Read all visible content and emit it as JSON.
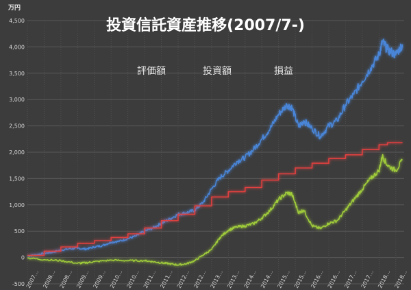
{
  "chart_data": {
    "type": "line",
    "title": "投資信託資産推移(2007/7-)",
    "y_unit_label": "万円",
    "ylim": [
      -500,
      4500
    ],
    "y_ticks": [
      -500,
      0,
      500,
      1000,
      1500,
      2000,
      2500,
      3000,
      3500,
      4000,
      4500
    ],
    "y_tick_labels": [
      "-500",
      "0",
      "500",
      "1,000",
      "1,500",
      "2,000",
      "2,500",
      "3,000",
      "3,500",
      "4,000",
      "4,500"
    ],
    "x_range": [
      2007.5,
      2018.75
    ],
    "x_ticks": [
      2007.5,
      2008.0,
      2008.5,
      2009.0,
      2009.5,
      2010.0,
      2010.5,
      2011.0,
      2011.5,
      2012.0,
      2012.5,
      2013.0,
      2013.5,
      2014.0,
      2014.5,
      2015.0,
      2015.5,
      2016.0,
      2016.5,
      2017.0,
      2017.5,
      2018.0,
      2018.5
    ],
    "x_tick_labels": [
      "2007…",
      "2008…",
      "2008…",
      "2009…",
      "2009…",
      "2010…",
      "2010…",
      "2011…",
      "2011…",
      "2012…",
      "2012…",
      "2013…",
      "2013…",
      "2014…",
      "2014…",
      "2015…",
      "2015…",
      "2016…",
      "2016…",
      "2017…",
      "2017…",
      "2018…",
      "2018…"
    ],
    "grid": true,
    "legend_position": "top-center",
    "series": [
      {
        "name": "評価額",
        "color": "#4a86d9",
        "points": [
          [
            2007.5,
            30
          ],
          [
            2007.75,
            50
          ],
          [
            2008.0,
            80
          ],
          [
            2008.25,
            100
          ],
          [
            2008.5,
            140
          ],
          [
            2008.75,
            165
          ],
          [
            2009.0,
            175
          ],
          [
            2009.25,
            160
          ],
          [
            2009.5,
            200
          ],
          [
            2009.75,
            230
          ],
          [
            2010.0,
            290
          ],
          [
            2010.25,
            310
          ],
          [
            2010.5,
            360
          ],
          [
            2010.75,
            410
          ],
          [
            2011.0,
            500
          ],
          [
            2011.25,
            560
          ],
          [
            2011.5,
            650
          ],
          [
            2011.75,
            730
          ],
          [
            2012.0,
            820
          ],
          [
            2012.25,
            850
          ],
          [
            2012.5,
            900
          ],
          [
            2012.75,
            1050
          ],
          [
            2013.0,
            1300
          ],
          [
            2013.25,
            1520
          ],
          [
            2013.5,
            1650
          ],
          [
            2013.75,
            1820
          ],
          [
            2014.0,
            1900
          ],
          [
            2014.25,
            2050
          ],
          [
            2014.5,
            2250
          ],
          [
            2014.75,
            2450
          ],
          [
            2015.0,
            2720
          ],
          [
            2015.25,
            2900
          ],
          [
            2015.4,
            2850
          ],
          [
            2015.6,
            2480
          ],
          [
            2015.75,
            2600
          ],
          [
            2016.0,
            2450
          ],
          [
            2016.25,
            2300
          ],
          [
            2016.5,
            2500
          ],
          [
            2016.75,
            2600
          ],
          [
            2017.0,
            2900
          ],
          [
            2017.25,
            3100
          ],
          [
            2017.5,
            3350
          ],
          [
            2017.75,
            3600
          ],
          [
            2018.0,
            3850
          ],
          [
            2018.1,
            4100
          ],
          [
            2018.25,
            3950
          ],
          [
            2018.5,
            3850
          ],
          [
            2018.7,
            4050
          ]
        ]
      },
      {
        "name": "投資額",
        "color": "#e0403f",
        "points": [
          [
            2007.5,
            40
          ],
          [
            2008.0,
            120
          ],
          [
            2008.5,
            200
          ],
          [
            2009.0,
            270
          ],
          [
            2009.5,
            320
          ],
          [
            2010.0,
            380
          ],
          [
            2010.5,
            450
          ],
          [
            2011.0,
            560
          ],
          [
            2011.5,
            700
          ],
          [
            2012.0,
            820
          ],
          [
            2012.5,
            980
          ],
          [
            2013.0,
            1150
          ],
          [
            2013.5,
            1250
          ],
          [
            2014.0,
            1330
          ],
          [
            2014.5,
            1470
          ],
          [
            2015.0,
            1590
          ],
          [
            2015.5,
            1700
          ],
          [
            2016.0,
            1790
          ],
          [
            2016.5,
            1880
          ],
          [
            2017.0,
            1950
          ],
          [
            2017.5,
            2050
          ],
          [
            2018.0,
            2140
          ],
          [
            2018.25,
            2180
          ],
          [
            2018.7,
            2180
          ]
        ]
      },
      {
        "name": "損益",
        "color": "#9fcb3b",
        "points": [
          [
            2007.5,
            -10
          ],
          [
            2008.0,
            -40
          ],
          [
            2008.5,
            -60
          ],
          [
            2009.0,
            -110
          ],
          [
            2009.25,
            -100
          ],
          [
            2009.5,
            -80
          ],
          [
            2010.0,
            -50
          ],
          [
            2010.5,
            -60
          ],
          [
            2011.0,
            -60
          ],
          [
            2011.25,
            -80
          ],
          [
            2011.5,
            -100
          ],
          [
            2011.75,
            -120
          ],
          [
            2012.0,
            -140
          ],
          [
            2012.25,
            -120
          ],
          [
            2012.5,
            -60
          ],
          [
            2012.75,
            50
          ],
          [
            2013.0,
            150
          ],
          [
            2013.25,
            380
          ],
          [
            2013.5,
            520
          ],
          [
            2013.75,
            580
          ],
          [
            2014.0,
            600
          ],
          [
            2014.25,
            640
          ],
          [
            2014.5,
            750
          ],
          [
            2014.75,
            900
          ],
          [
            2015.0,
            1100
          ],
          [
            2015.25,
            1230
          ],
          [
            2015.4,
            1200
          ],
          [
            2015.6,
            850
          ],
          [
            2015.75,
            900
          ],
          [
            2016.0,
            600
          ],
          [
            2016.25,
            550
          ],
          [
            2016.5,
            650
          ],
          [
            2016.75,
            700
          ],
          [
            2017.0,
            900
          ],
          [
            2017.25,
            1100
          ],
          [
            2017.5,
            1300
          ],
          [
            2017.75,
            1500
          ],
          [
            2018.0,
            1650
          ],
          [
            2018.1,
            1930
          ],
          [
            2018.25,
            1750
          ],
          [
            2018.5,
            1650
          ],
          [
            2018.7,
            1850
          ]
        ]
      }
    ]
  }
}
